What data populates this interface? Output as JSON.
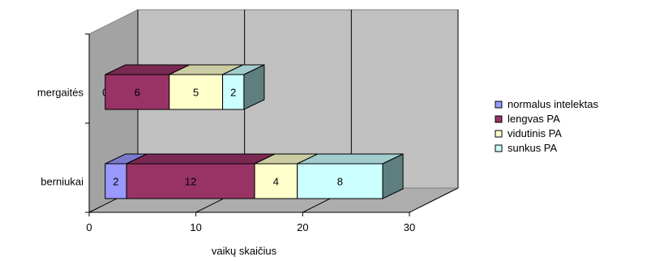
{
  "chart_data": {
    "type": "bar",
    "orientation": "horizontal",
    "stacked": true,
    "style": "3d",
    "categories": [
      "mergaitės",
      "berniukai"
    ],
    "series": [
      {
        "name": "normalus intelektas",
        "values": [
          0,
          2
        ],
        "color": "#9999ff"
      },
      {
        "name": "lengvas PA",
        "values": [
          6,
          12
        ],
        "color": "#993366"
      },
      {
        "name": "vidutinis PA",
        "values": [
          5,
          4
        ],
        "color": "#ffffcc"
      },
      {
        "name": "sunkus PA",
        "values": [
          2,
          8
        ],
        "color": "#ccffff"
      }
    ],
    "data_labels": [
      [
        "0",
        "6",
        "5",
        "2"
      ],
      [
        "2",
        "12",
        "4",
        "8"
      ]
    ],
    "x_ticks": [
      "0",
      "10",
      "20",
      "30"
    ],
    "xlim": [
      0,
      30
    ],
    "xlabel": "vaikų skaičius",
    "ylabel": "",
    "title": "",
    "grid": true,
    "legend_position": "right"
  },
  "colors": {
    "wall": "#c0c0c0",
    "floor": "#c0c0c0",
    "gridline": "#000000"
  }
}
